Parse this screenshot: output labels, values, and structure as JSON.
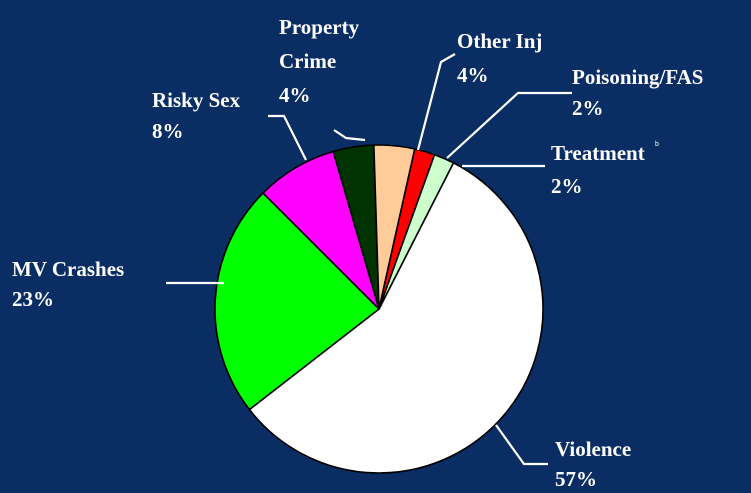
{
  "chart_data": {
    "type": "pie",
    "title": "",
    "slices": [
      {
        "name": "Violence",
        "label": "Violence",
        "percent_label": "57%",
        "value": 57,
        "color": "#ffffff"
      },
      {
        "name": "MV Crashes",
        "label": "MV Crashes",
        "percent_label": "23%",
        "value": 23,
        "color": "#00ff00"
      },
      {
        "name": "Risky Sex",
        "label": "Risky Sex",
        "percent_label": "8%",
        "value": 8,
        "color": "#ff00ff"
      },
      {
        "name": "Property Crime",
        "label": [
          "Property",
          "Crime"
        ],
        "percent_label": "4%",
        "value": 4,
        "color": "#003300"
      },
      {
        "name": "Other Inj",
        "label": "Other Inj",
        "percent_label": "4%",
        "value": 4,
        "color": "#ffcc99"
      },
      {
        "name": "Poisoning/FAS",
        "label": "Poisoning/FAS",
        "percent_label": "2%",
        "value": 2,
        "color": "#ff0000"
      },
      {
        "name": "Treatment",
        "label": "Treatment",
        "percent_label": "2%",
        "value": 2,
        "color": "#ccffcc"
      }
    ],
    "legend": "none",
    "data_labels": "outside-with-leader-lines"
  },
  "stray_mark": "b",
  "colors": {
    "background": "#0a2d63",
    "text": "#ffffff",
    "slice_border": "#000000"
  }
}
